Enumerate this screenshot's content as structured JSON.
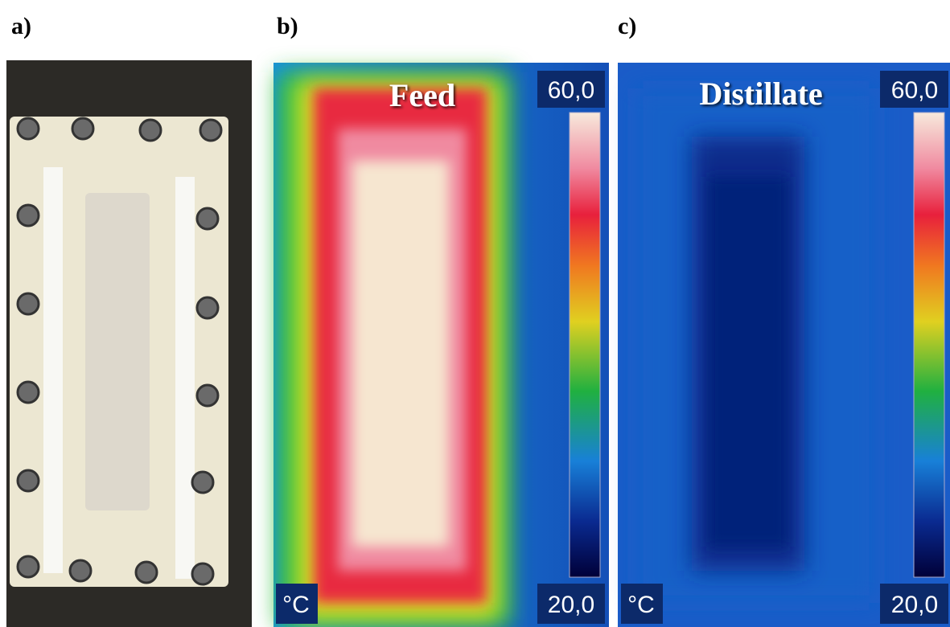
{
  "panels": [
    {
      "label": "a)"
    },
    {
      "label": "b)",
      "title": "Feed",
      "scale_max": "60,0",
      "scale_min": "20,0",
      "unit": "°C"
    },
    {
      "label": "c)",
      "title": "Distillate",
      "scale_max": "60,0",
      "scale_min": "20,0",
      "unit": "°C"
    }
  ]
}
